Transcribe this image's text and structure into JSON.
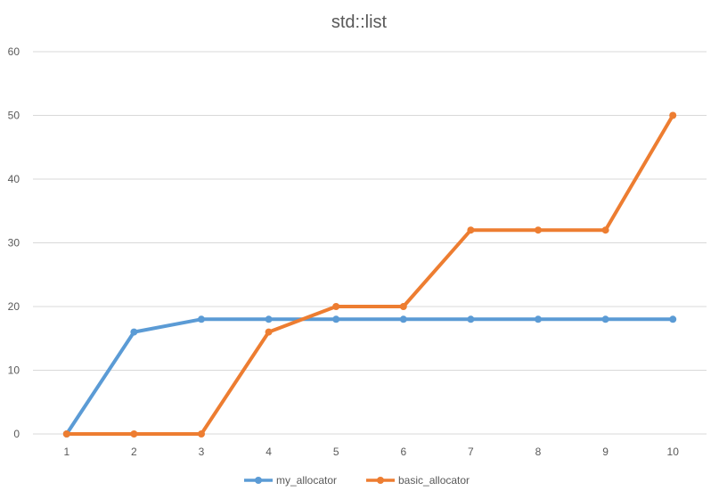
{
  "chart_data": {
    "type": "line",
    "title": "std::list",
    "xlabel": "",
    "ylabel": "",
    "categories": [
      "1",
      "2",
      "3",
      "4",
      "5",
      "6",
      "7",
      "8",
      "9",
      "10"
    ],
    "ylim": [
      0,
      60
    ],
    "yticks": [
      0,
      10,
      20,
      30,
      40,
      50,
      60
    ],
    "grid": true,
    "legend_position": "bottom",
    "series": [
      {
        "name": "my_allocator",
        "color": "#5b9bd5",
        "values": [
          0,
          16,
          18,
          18,
          18,
          18,
          18,
          18,
          18,
          18
        ]
      },
      {
        "name": "basic_allocator",
        "color": "#ed7d31",
        "values": [
          0,
          0,
          0,
          16,
          20,
          20,
          32,
          32,
          32,
          50
        ]
      }
    ]
  }
}
